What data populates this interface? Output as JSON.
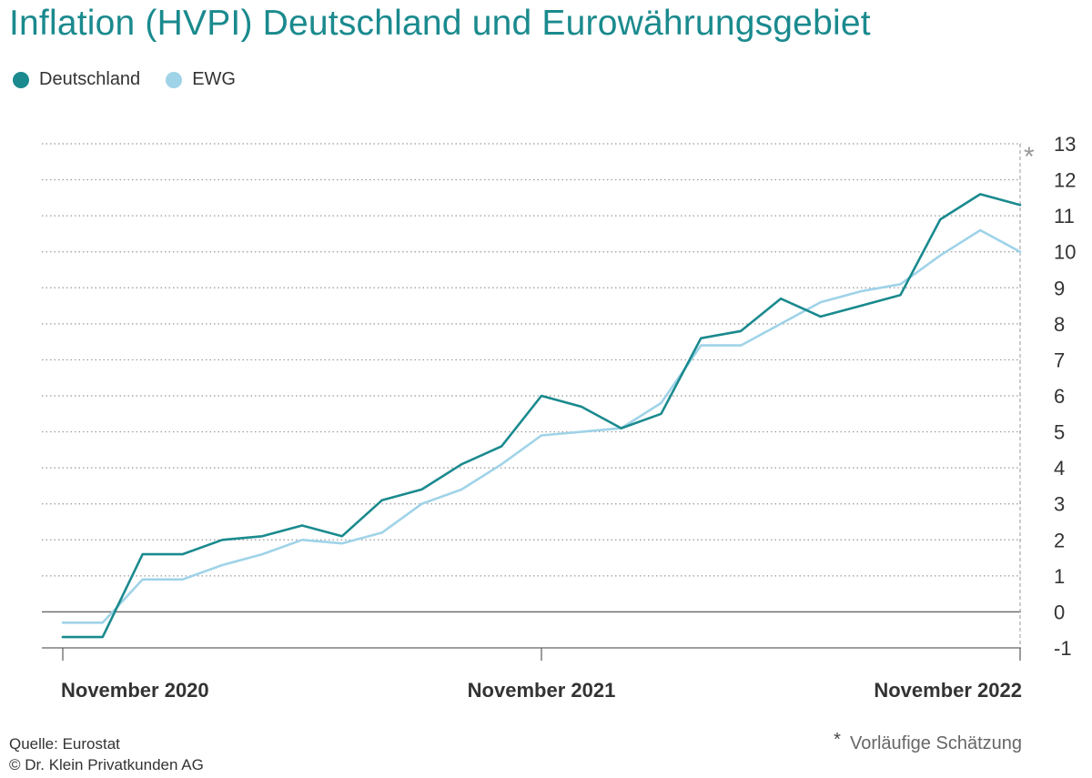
{
  "title": "Inflation (HVPI) Deutschland und Eurowährungsgebiet",
  "colors": {
    "title": "#1a8a8e",
    "deutschland": "#1a8a8e",
    "ewg": "#9fd3e8",
    "grid": "#999999",
    "axis": "#666666"
  },
  "footer": {
    "source": "Quelle: Eurostat",
    "copyright": "© Dr. Klein Privatkunden AG"
  },
  "footnote": {
    "marker": "*",
    "text": "Vorläufige Schätzung"
  },
  "chart_data": {
    "type": "line",
    "x": [
      "2020-11",
      "2020-12",
      "2021-01",
      "2021-02",
      "2021-03",
      "2021-04",
      "2021-05",
      "2021-06",
      "2021-07",
      "2021-08",
      "2021-09",
      "2021-10",
      "2021-11",
      "2021-12",
      "2022-01",
      "2022-02",
      "2022-03",
      "2022-04",
      "2022-05",
      "2022-06",
      "2022-07",
      "2022-08",
      "2022-09",
      "2022-10",
      "2022-11"
    ],
    "x_tick_labels": [
      {
        "x": "2020-11",
        "label": "November 2020"
      },
      {
        "x": "2021-11",
        "label": "November 2021"
      },
      {
        "x": "2022-11",
        "label": "November 2022"
      }
    ],
    "series": [
      {
        "name": "Deutschland",
        "values": [
          -0.7,
          -0.7,
          1.6,
          1.6,
          2.0,
          2.1,
          2.4,
          2.1,
          3.1,
          3.4,
          4.1,
          4.6,
          6.0,
          5.7,
          5.1,
          5.5,
          7.6,
          7.8,
          8.7,
          8.2,
          8.5,
          8.8,
          10.9,
          11.6,
          11.3
        ]
      },
      {
        "name": "EWG",
        "values": [
          -0.3,
          -0.3,
          0.9,
          0.9,
          1.3,
          1.6,
          2.0,
          1.9,
          2.2,
          3.0,
          3.4,
          4.1,
          4.9,
          5.0,
          5.1,
          5.8,
          7.4,
          7.4,
          8.0,
          8.6,
          8.9,
          9.1,
          9.9,
          10.6,
          10.0
        ]
      }
    ],
    "y_ticks": [
      -1,
      0,
      1,
      2,
      3,
      4,
      5,
      6,
      7,
      8,
      9,
      10,
      11,
      12,
      13
    ],
    "ylim": [
      -1,
      13
    ],
    "grid": true,
    "legend_position": "top-left",
    "preliminary_marker": {
      "x": "2022-11",
      "label": "*"
    }
  }
}
